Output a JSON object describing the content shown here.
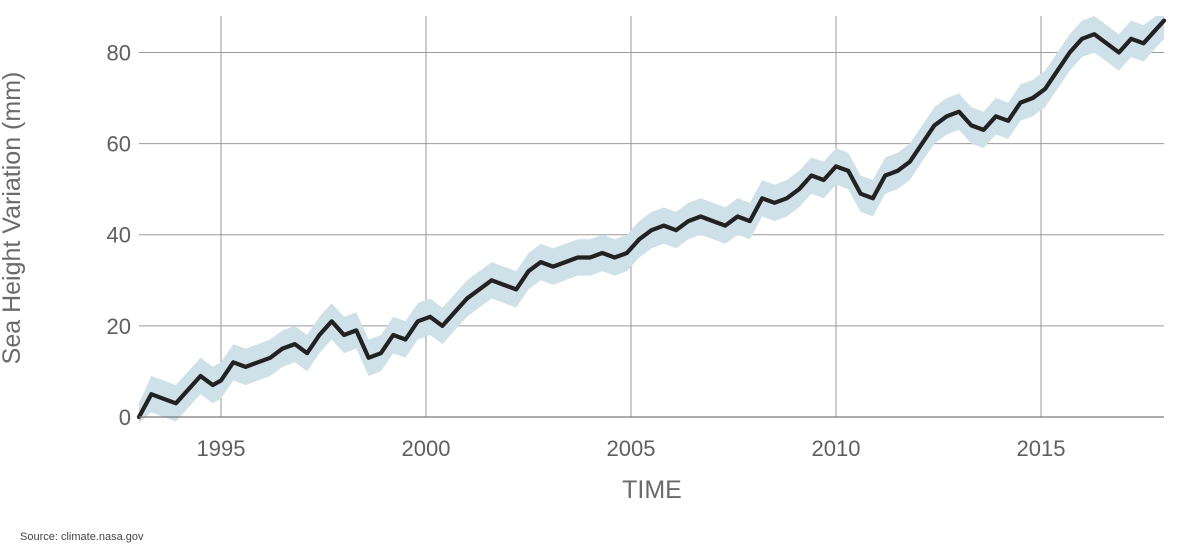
{
  "chart_data": {
    "type": "area",
    "title": "",
    "xlabel": "TIME",
    "ylabel": "Sea Height Variation (mm)",
    "xlim": [
      1993.0,
      2018.0
    ],
    "ylim": [
      0,
      88
    ],
    "x_ticks": [
      1995,
      2000,
      2005,
      2010,
      2015
    ],
    "y_ticks": [
      0,
      20,
      40,
      60,
      80
    ],
    "grid": true,
    "legend": "none",
    "series": [
      {
        "x": [
          1993.0,
          1993.3,
          1993.6,
          1993.9,
          1994.2,
          1994.5,
          1994.8,
          1995.0,
          1995.3,
          1995.6,
          1995.9,
          1996.2,
          1996.5,
          1996.8,
          1997.1,
          1997.4,
          1997.7,
          1998.0,
          1998.3,
          1998.6,
          1998.9,
          1999.2,
          1999.5,
          1999.8,
          2000.1,
          2000.4,
          2000.7,
          2001.0,
          2001.3,
          2001.6,
          2001.9,
          2002.2,
          2002.5,
          2002.8,
          2003.1,
          2003.4,
          2003.7,
          2004.0,
          2004.3,
          2004.6,
          2004.9,
          2005.2,
          2005.5,
          2005.8,
          2006.1,
          2006.4,
          2006.7,
          2007.0,
          2007.3,
          2007.6,
          2007.9,
          2008.2,
          2008.5,
          2008.8,
          2009.1,
          2009.4,
          2009.7,
          2010.0,
          2010.3,
          2010.6,
          2010.9,
          2011.2,
          2011.5,
          2011.8,
          2012.1,
          2012.4,
          2012.7,
          2013.0,
          2013.3,
          2013.6,
          2013.9,
          2014.2,
          2014.5,
          2014.8,
          2015.1,
          2015.4,
          2015.7,
          2016.0,
          2016.3,
          2016.6,
          2016.9,
          2017.2,
          2017.5,
          2017.8,
          2018.0
        ],
        "values": [
          0,
          5,
          4,
          3,
          6,
          9,
          7,
          8,
          12,
          11,
          12,
          13,
          15,
          16,
          14,
          18,
          21,
          18,
          19,
          13,
          14,
          18,
          17,
          21,
          22,
          20,
          23,
          26,
          28,
          30,
          29,
          28,
          32,
          34,
          33,
          34,
          35,
          35,
          36,
          35,
          36,
          39,
          41,
          42,
          41,
          43,
          44,
          43,
          42,
          44,
          43,
          48,
          47,
          48,
          50,
          53,
          52,
          55,
          54,
          49,
          48,
          53,
          54,
          56,
          60,
          64,
          66,
          67,
          64,
          63,
          66,
          65,
          69,
          70,
          72,
          76,
          80,
          83,
          84,
          82,
          80,
          83,
          82,
          85,
          87
        ],
        "lower": [
          -3,
          1,
          0,
          -1,
          2,
          5,
          3,
          4,
          8,
          7,
          8,
          9,
          11,
          12,
          10,
          14,
          17,
          14,
          15,
          9,
          10,
          14,
          13,
          17,
          18,
          16,
          19,
          22,
          24,
          26,
          25,
          24,
          28,
          30,
          29,
          30,
          31,
          31,
          32,
          31,
          32,
          35,
          37,
          38,
          37,
          39,
          40,
          39,
          38,
          40,
          39,
          44,
          43,
          44,
          46,
          49,
          48,
          51,
          50,
          45,
          44,
          49,
          50,
          52,
          56,
          60,
          62,
          63,
          60,
          59,
          62,
          61,
          65,
          66,
          68,
          72,
          76,
          79,
          80,
          78,
          76,
          79,
          78,
          81,
          83
        ],
        "upper": [
          3,
          9,
          8,
          7,
          10,
          13,
          11,
          12,
          16,
          15,
          16,
          17,
          19,
          20,
          18,
          22,
          25,
          22,
          23,
          17,
          18,
          22,
          21,
          25,
          26,
          24,
          27,
          30,
          32,
          34,
          33,
          32,
          36,
          38,
          37,
          38,
          39,
          39,
          40,
          39,
          40,
          43,
          45,
          46,
          45,
          47,
          48,
          47,
          46,
          48,
          47,
          52,
          51,
          52,
          54,
          57,
          56,
          59,
          58,
          53,
          52,
          57,
          58,
          60,
          64,
          68,
          70,
          71,
          68,
          67,
          70,
          69,
          73,
          74,
          76,
          80,
          84,
          87,
          88,
          86,
          84,
          87,
          86,
          89,
          91
        ]
      }
    ],
    "colors": {
      "line": "#222222",
      "band": "#cfe1e8",
      "grid": "#9a9a9a",
      "axis": "#7a7a7a"
    }
  },
  "footer": {
    "source": "Source: climate.nasa.gov"
  }
}
